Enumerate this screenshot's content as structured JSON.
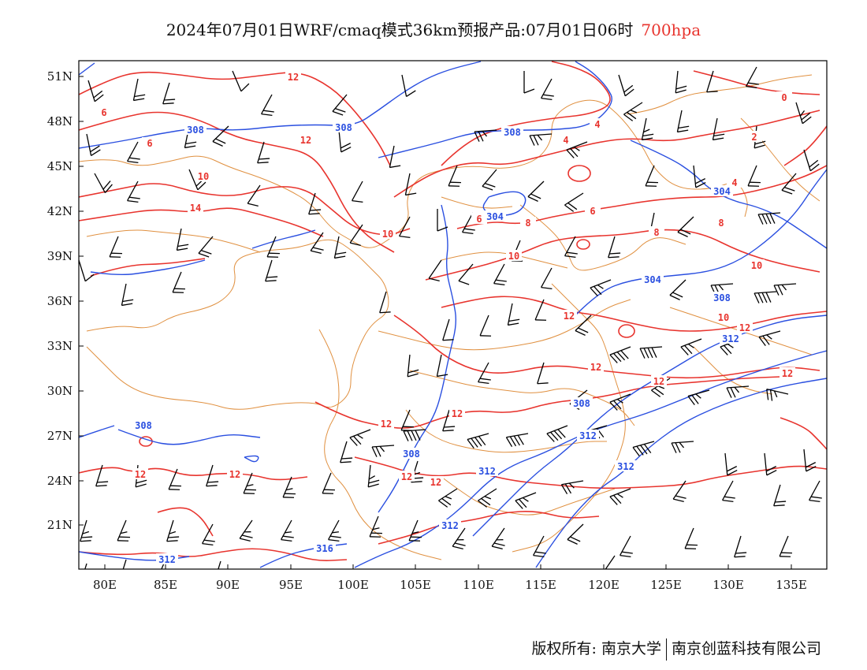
{
  "title": {
    "main": "2024年07月01日WRF/cmaq模式36km预报产品:07月01日06时",
    "level": "700hpa"
  },
  "footer": {
    "owner": "版权所有: 南京大学",
    "company": "南京创蓝科技有限公司"
  },
  "axes": {
    "lon_labels": [
      "80E",
      "85E",
      "90E",
      "95E",
      "100E",
      "105E",
      "110E",
      "115E",
      "120E",
      "125E",
      "130E",
      "135E"
    ],
    "lat_labels": [
      "51N",
      "48N",
      "45N",
      "42N",
      "39N",
      "36N",
      "33N",
      "30N",
      "27N",
      "24N",
      "21N"
    ]
  },
  "colors": {
    "temperature": "#e8342e",
    "height": "#2a4fe0",
    "border": "#e09040",
    "wind": "#000000",
    "level_text": "#e8342e"
  },
  "temperature_labels": [
    "12",
    "6",
    "6",
    "10",
    "14",
    "12",
    "10",
    "6",
    "8",
    "10",
    "4",
    "4",
    "0",
    "2",
    "4",
    "6",
    "8",
    "8",
    "10",
    "10",
    "12",
    "12",
    "12",
    "12",
    "12",
    "12",
    "12",
    "12",
    "12",
    "12",
    "12"
  ],
  "height_labels": [
    "308",
    "308",
    "308",
    "304",
    "304",
    "304",
    "308",
    "312",
    "308",
    "308",
    "312",
    "308",
    "312",
    "312",
    "316",
    "312",
    "312"
  ]
}
